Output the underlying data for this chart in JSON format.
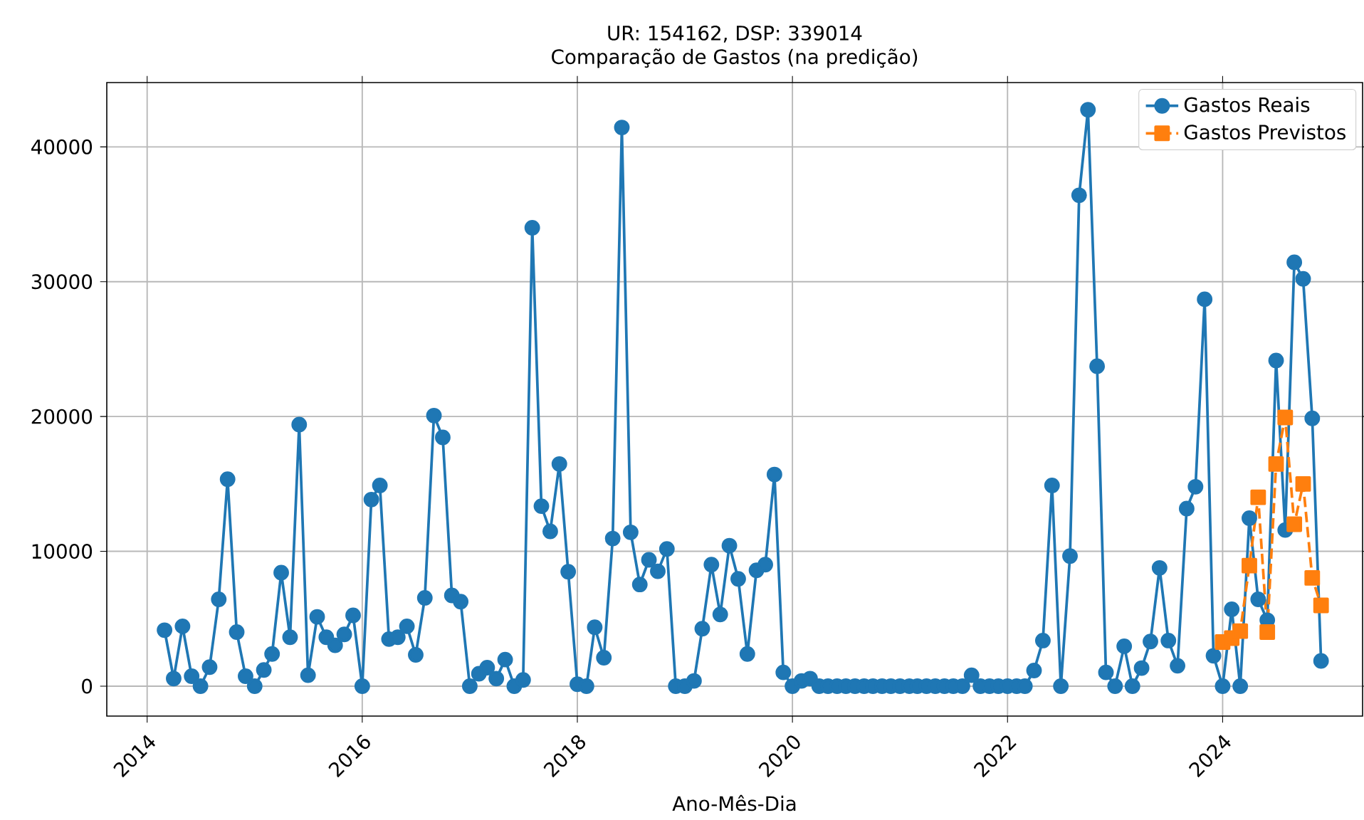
{
  "chart_data": {
    "type": "line",
    "title": "UR: 154162, DSP: 339014",
    "subtitle": "Comparação de Gastos (na predição)",
    "xlabel": "Ano-Mês-Dia",
    "x": [
      "2014-03",
      "2014-04",
      "2014-05",
      "2014-06",
      "2014-07",
      "2014-08",
      "2014-09",
      "2014-10",
      "2014-11",
      "2014-12",
      "2015-01",
      "2015-02",
      "2015-03",
      "2015-04",
      "2015-05",
      "2015-06",
      "2015-07",
      "2015-08",
      "2015-09",
      "2015-10",
      "2015-11",
      "2015-12",
      "2016-01",
      "2016-02",
      "2016-03",
      "2016-04",
      "2016-05",
      "2016-06",
      "2016-07",
      "2016-08",
      "2016-09",
      "2016-10",
      "2016-11",
      "2016-12",
      "2017-01",
      "2017-02",
      "2017-03",
      "2017-04",
      "2017-05",
      "2017-06",
      "2017-07",
      "2017-08",
      "2017-09",
      "2017-10",
      "2017-11",
      "2017-12",
      "2018-01",
      "2018-02",
      "2018-03",
      "2018-04",
      "2018-05",
      "2018-06",
      "2018-07",
      "2018-08",
      "2018-09",
      "2018-10",
      "2018-11",
      "2018-12",
      "2019-01",
      "2019-02",
      "2019-03",
      "2019-04",
      "2019-05",
      "2019-06",
      "2019-07",
      "2019-08",
      "2019-09",
      "2019-10",
      "2019-11",
      "2019-12",
      "2020-01",
      "2020-02",
      "2020-03",
      "2020-04",
      "2020-05",
      "2020-06",
      "2020-07",
      "2020-08",
      "2020-09",
      "2020-10",
      "2020-11",
      "2020-12",
      "2021-01",
      "2021-02",
      "2021-03",
      "2021-04",
      "2021-05",
      "2021-06",
      "2021-07",
      "2021-08",
      "2021-09",
      "2021-10",
      "2021-11",
      "2021-12",
      "2022-01",
      "2022-02",
      "2022-03",
      "2022-04",
      "2022-05",
      "2022-06",
      "2022-07",
      "2022-08",
      "2022-09",
      "2022-10",
      "2022-11",
      "2022-12",
      "2023-01",
      "2023-02",
      "2023-03",
      "2023-04",
      "2023-05",
      "2023-06",
      "2023-07",
      "2023-08",
      "2023-09",
      "2023-10",
      "2023-11",
      "2023-12",
      "2024-01",
      "2024-02",
      "2024-03",
      "2024-04",
      "2024-05",
      "2024-06",
      "2024-07",
      "2024-08",
      "2024-09",
      "2024-10",
      "2024-11",
      "2024-12"
    ],
    "series": [
      {
        "name": "Gastos Reais",
        "color": "#1f77b4",
        "marker": "circle",
        "line_style": "solid",
        "values": [
          4150,
          560,
          4440,
          740,
          0,
          1410,
          6440,
          15350,
          4010,
          740,
          0,
          1200,
          2390,
          8420,
          3630,
          19400,
          810,
          5140,
          3630,
          3030,
          3840,
          5250,
          0,
          13840,
          14890,
          3490,
          3630,
          4440,
          2320,
          6550,
          20070,
          18450,
          6730,
          6270,
          0,
          920,
          1370,
          560,
          1970,
          0,
          460,
          34000,
          13350,
          11480,
          16480,
          8490,
          140,
          0,
          4370,
          2110,
          10950,
          41440,
          11410,
          7540,
          9370,
          8520,
          10180,
          0,
          0,
          390,
          4260,
          9010,
          5320,
          10420,
          7960,
          2390,
          8590,
          9010,
          15700,
          1020,
          0,
          390,
          560,
          0,
          0,
          0,
          0,
          0,
          0,
          0,
          0,
          0,
          0,
          0,
          0,
          0,
          0,
          0,
          0,
          0,
          810,
          0,
          0,
          0,
          0,
          0,
          0,
          1160,
          3380,
          14890,
          0,
          9650,
          36410,
          42750,
          23730,
          1020,
          0,
          2960,
          0,
          1340,
          3310,
          8770,
          3380,
          1510,
          13170,
          14790,
          28700,
          2250,
          0,
          5700,
          0,
          12460,
          6440,
          4890,
          24150,
          11580,
          31440,
          30210,
          19860,
          1870
        ]
      },
      {
        "name": "Gastos Previstos",
        "color": "#ff7f0e",
        "marker": "square",
        "line_style": "dashed",
        "x": [
          "2024-01",
          "2024-02",
          "2024-03",
          "2024-04",
          "2024-05",
          "2024-06",
          "2024-07",
          "2024-08",
          "2024-09",
          "2024-10",
          "2024-11",
          "2024-12"
        ],
        "values": [
          3270,
          3560,
          4080,
          8940,
          14010,
          4010,
          16480,
          19930,
          12010,
          15000,
          8030,
          5990
        ]
      }
    ],
    "xlim": [
      "2013-08-17",
      "2025-04-21"
    ],
    "xticks": [
      "2014",
      "2016",
      "2018",
      "2020",
      "2022",
      "2024"
    ],
    "ylim": [
      -2220,
      44770
    ],
    "yticks": [
      0,
      10000,
      20000,
      30000,
      40000
    ],
    "grid": true,
    "legend": "top right"
  }
}
